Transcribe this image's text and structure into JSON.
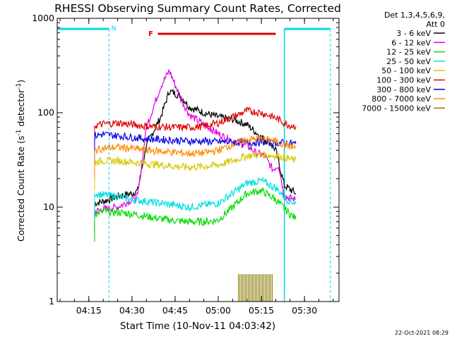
{
  "chart_data": {
    "type": "line",
    "title": "RHESSI Observing Summary Count Rates, Corrected",
    "xlabel": "Start Time (10-Nov-11 04:03:42)",
    "ylabel_main": "Corrected Count Rate (s",
    "ylabel_sup1": "-1",
    "ylabel_mid": " detector",
    "ylabel_sup2": "-1",
    "ylabel_end": ")",
    "footer": "22-Oct-2021 08:29",
    "yscale": "log",
    "xlim": [
      "04:04",
      "05:42"
    ],
    "ylim": [
      1,
      1000
    ],
    "x_ticks": [
      "04:15",
      "04:30",
      "04:45",
      "05:00",
      "05:15",
      "05:30"
    ],
    "y_ticks": [
      "1",
      "10",
      "100",
      "1000"
    ],
    "legend_header": [
      "Det 1,3,4,5,6,9,",
      "Att 0"
    ],
    "annotations": {
      "night_label": "N",
      "flare_label": "F",
      "flare_interval": [
        "04:39",
        "05:20"
      ],
      "night_intervals": [
        [
          "04:04",
          "04:22"
        ],
        [
          "05:23",
          "05:39"
        ]
      ]
    },
    "colors": {
      "night": "#00d8e8",
      "flare": "#e00000",
      "attenuator": "#8a7a00"
    },
    "series": [
      {
        "name": "3 - 6 keV",
        "color": "#000000",
        "x": [
          "04:17",
          "04:20",
          "04:25",
          "04:30",
          "04:32",
          "04:35",
          "04:40",
          "04:43",
          "04:47",
          "04:50",
          "04:55",
          "05:00",
          "05:05",
          "05:10",
          "05:15",
          "05:18",
          "05:20",
          "05:23",
          "05:27"
        ],
        "values": [
          11,
          11.5,
          13,
          14,
          15,
          45,
          90,
          170,
          150,
          115,
          100,
          90,
          85,
          75,
          55,
          48,
          40,
          17,
          14
        ]
      },
      {
        "name": "6 - 12 keV",
        "color": "#e000e0",
        "x": [
          "04:17",
          "04:20",
          "04:25",
          "04:30",
          "04:32",
          "04:35",
          "04:40",
          "04:43",
          "04:47",
          "04:50",
          "04:55",
          "05:00",
          "05:05",
          "05:10",
          "05:13",
          "05:16",
          "05:19",
          "05:21",
          "05:23",
          "05:27"
        ],
        "values": [
          9,
          9.5,
          10,
          12,
          13,
          70,
          190,
          280,
          140,
          95,
          75,
          60,
          50,
          45,
          38,
          35,
          25,
          28,
          13,
          12
        ]
      },
      {
        "name": "12 - 25 keV",
        "color": "#00dd00",
        "x": [
          "04:17",
          "04:20",
          "04:25",
          "04:30",
          "04:35",
          "04:40",
          "04:45",
          "04:50",
          "04:55",
          "05:00",
          "05:05",
          "05:10",
          "05:15",
          "05:20",
          "05:24",
          "05:27"
        ],
        "values": [
          8.5,
          9,
          8.8,
          8.5,
          8,
          7.5,
          7.2,
          7,
          7,
          7.3,
          10,
          14,
          15,
          12,
          9,
          7.5
        ]
      },
      {
        "name": "25 - 50 keV",
        "color": "#00e0e0",
        "x": [
          "04:17",
          "04:20",
          "04:25",
          "04:30",
          "04:35",
          "04:40",
          "04:45",
          "04:50",
          "04:55",
          "05:00",
          "05:05",
          "05:10",
          "05:15",
          "05:20",
          "05:24",
          "05:27"
        ],
        "values": [
          14,
          13.5,
          13,
          12,
          11.5,
          11,
          10.5,
          10,
          10.5,
          11,
          14,
          18,
          19,
          16,
          12,
          11
        ]
      },
      {
        "name": "50 - 100 keV",
        "color": "#d8c800",
        "x": [
          "04:17",
          "04:20",
          "04:25",
          "04:30",
          "04:35",
          "04:40",
          "04:45",
          "04:50",
          "04:55",
          "05:00",
          "05:05",
          "05:10",
          "05:15",
          "05:20",
          "05:24",
          "05:27"
        ],
        "values": [
          30,
          31,
          31,
          30,
          29,
          28,
          27,
          26.5,
          27,
          28,
          31,
          35,
          36,
          35,
          33,
          31
        ]
      },
      {
        "name": "100 - 300 keV",
        "color": "#e00000",
        "x": [
          "04:17",
          "04:20",
          "04:25",
          "04:30",
          "04:35",
          "04:40",
          "04:45",
          "04:50",
          "04:55",
          "05:00",
          "05:05",
          "05:10",
          "05:15",
          "05:20",
          "05:24",
          "05:27"
        ],
        "values": [
          73,
          76,
          78,
          75,
          72,
          71,
          70,
          70,
          72,
          78,
          90,
          105,
          100,
          88,
          75,
          72
        ]
      },
      {
        "name": "300 - 800 keV",
        "color": "#0000e8",
        "x": [
          "04:17",
          "04:20",
          "04:25",
          "04:30",
          "04:35",
          "04:40",
          "04:45",
          "04:50",
          "04:55",
          "05:00",
          "05:05",
          "05:10",
          "05:15",
          "05:20",
          "05:24",
          "05:27"
        ],
        "values": [
          57,
          59,
          57,
          55,
          53,
          52,
          51,
          50,
          50,
          49,
          49,
          48,
          49,
          48,
          48,
          47
        ]
      },
      {
        "name": "800 - 7000 keV",
        "color": "#ff8800",
        "x": [
          "04:17",
          "04:20",
          "04:25",
          "04:30",
          "04:35",
          "04:40",
          "04:45",
          "04:50",
          "04:55",
          "05:00",
          "05:05",
          "05:10",
          "05:15",
          "05:20",
          "05:24",
          "05:27"
        ],
        "values": [
          40,
          42,
          43,
          42,
          40,
          39,
          38,
          37,
          37.5,
          40,
          46,
          52,
          53,
          50,
          45,
          42
        ]
      },
      {
        "name": "7000 - 15000 keV",
        "color": "#8a7a00",
        "x": [
          "05:07",
          "05:10",
          "05:13",
          "05:16",
          "05:19"
        ],
        "values": [
          1.95,
          1.95,
          1.95,
          1.95,
          1.95
        ]
      }
    ]
  }
}
